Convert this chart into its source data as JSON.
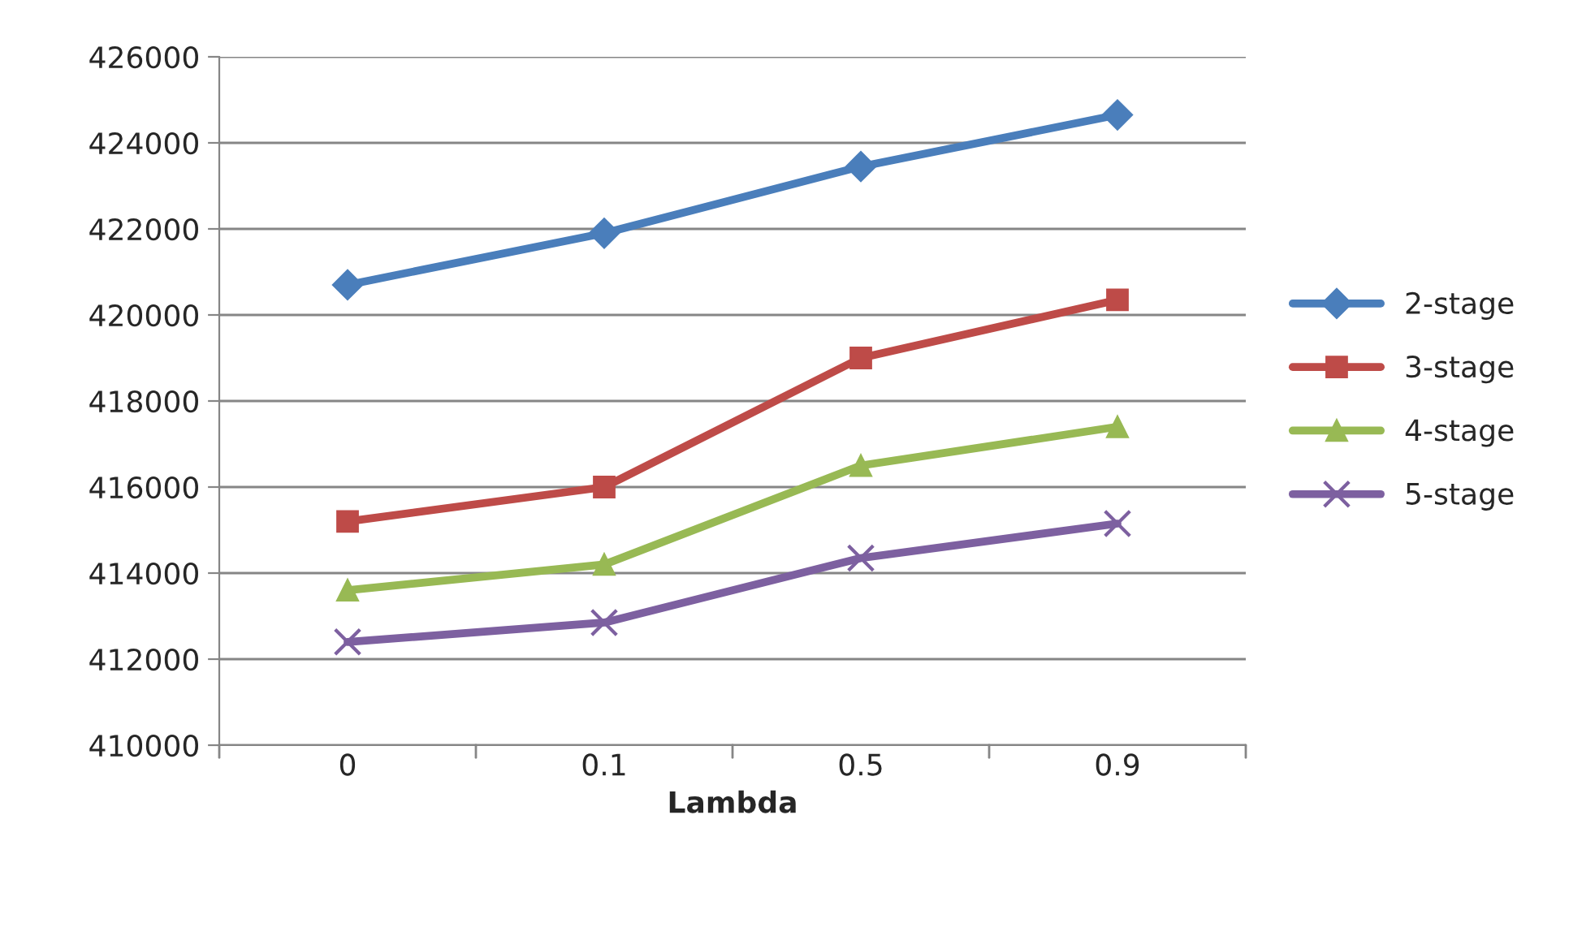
{
  "chart_data": {
    "type": "line",
    "xlabel": "Lambda",
    "categories": [
      "0",
      "0.1",
      "0.5",
      "0.9"
    ],
    "series": [
      {
        "name": "2-stage",
        "color": "#4a7ebb",
        "marker": "diamond",
        "values": [
          420700,
          421900,
          423450,
          424650
        ]
      },
      {
        "name": "3-stage",
        "color": "#be4b48",
        "marker": "square",
        "values": [
          415200,
          416000,
          419000,
          420350
        ]
      },
      {
        "name": "4-stage",
        "color": "#98b954",
        "marker": "triangle",
        "values": [
          413600,
          414200,
          416500,
          417400
        ]
      },
      {
        "name": "5-stage",
        "color": "#7d60a0",
        "marker": "cross",
        "values": [
          412400,
          412850,
          414350,
          415150
        ]
      }
    ],
    "ylim": [
      410000,
      426000
    ],
    "yticks": [
      410000,
      412000,
      414000,
      416000,
      418000,
      420000,
      422000,
      424000,
      426000
    ],
    "grid": "y",
    "legend": "right",
    "line_style": "solid"
  }
}
